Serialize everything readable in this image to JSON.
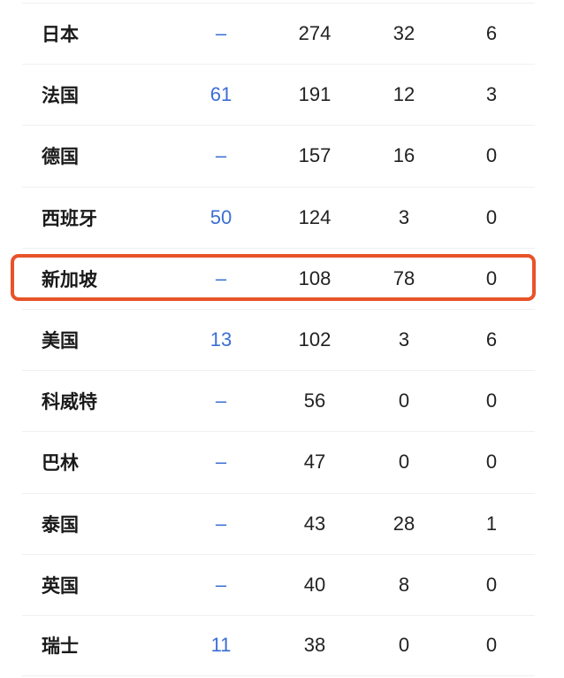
{
  "rows": [
    {
      "country": "日本",
      "rank": "–",
      "c3": "274",
      "c4": "32",
      "c5": "6"
    },
    {
      "country": "法国",
      "rank": "61",
      "c3": "191",
      "c4": "12",
      "c5": "3"
    },
    {
      "country": "德国",
      "rank": "–",
      "c3": "157",
      "c4": "16",
      "c5": "0"
    },
    {
      "country": "西班牙",
      "rank": "50",
      "c3": "124",
      "c4": "3",
      "c5": "0"
    },
    {
      "country": "新加坡",
      "rank": "–",
      "c3": "108",
      "c4": "78",
      "c5": "0"
    },
    {
      "country": "美国",
      "rank": "13",
      "c3": "102",
      "c4": "3",
      "c5": "6"
    },
    {
      "country": "科威特",
      "rank": "–",
      "c3": "56",
      "c4": "0",
      "c5": "0"
    },
    {
      "country": "巴林",
      "rank": "–",
      "c3": "47",
      "c4": "0",
      "c5": "0"
    },
    {
      "country": "泰国",
      "rank": "–",
      "c3": "43",
      "c4": "28",
      "c5": "1"
    },
    {
      "country": "英国",
      "rank": "–",
      "c3": "40",
      "c4": "8",
      "c5": "0"
    },
    {
      "country": "瑞士",
      "rank": "11",
      "c3": "38",
      "c4": "0",
      "c5": "0"
    }
  ],
  "highlighted_row": "新加坡",
  "colors": {
    "highlight": "#e8532a",
    "link": "#3b6fd4"
  }
}
